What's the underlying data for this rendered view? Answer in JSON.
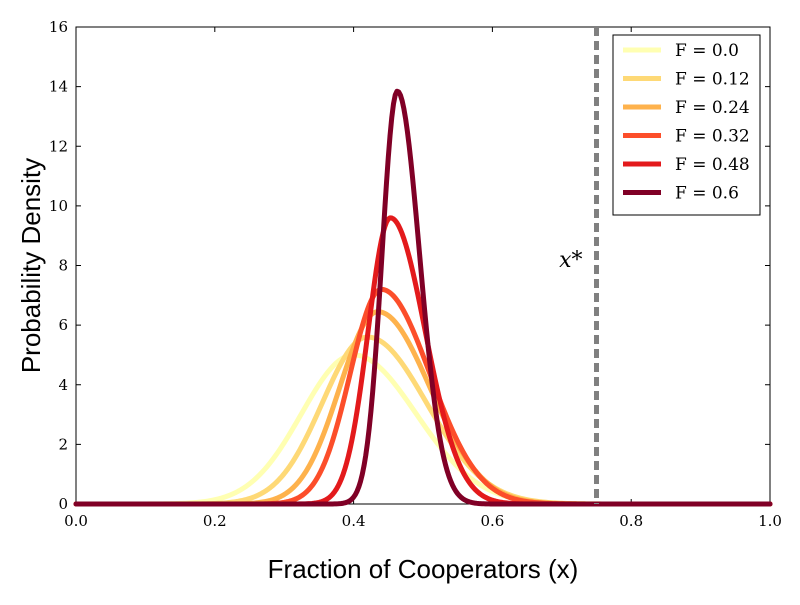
{
  "chart_data": {
    "type": "line",
    "xlabel": "Fraction of Cooperators (x)",
    "ylabel": "Probability Density",
    "xlim": [
      0.0,
      1.0
    ],
    "ylim": [
      0,
      16
    ],
    "xticks": [
      "0.0",
      "0.2",
      "0.4",
      "0.6",
      "0.8",
      "1.0"
    ],
    "yticks": [
      "0",
      "2",
      "4",
      "6",
      "8",
      "10",
      "12",
      "14",
      "16"
    ],
    "grid": false,
    "legend_position": "top-right",
    "series": [
      {
        "name": "F = 0.0",
        "color": "#ffffb2",
        "peak_x": 0.4,
        "peak_y": 5.0,
        "sigma_left": 0.075,
        "sigma_right": 0.09
      },
      {
        "name": "F = 0.12",
        "color": "#fed976",
        "peak_x": 0.42,
        "peak_y": 5.6,
        "sigma_left": 0.065,
        "sigma_right": 0.085
      },
      {
        "name": "F = 0.24",
        "color": "#feb24c",
        "peak_x": 0.435,
        "peak_y": 6.45,
        "sigma_left": 0.055,
        "sigma_right": 0.075
      },
      {
        "name": "F = 0.32",
        "color": "#fc4e2a",
        "peak_x": 0.44,
        "peak_y": 7.2,
        "sigma_left": 0.045,
        "sigma_right": 0.07
      },
      {
        "name": "F = 0.48",
        "color": "#e31a1c",
        "peak_x": 0.453,
        "peak_y": 9.6,
        "sigma_left": 0.032,
        "sigma_right": 0.05
      },
      {
        "name": "F = 0.6",
        "color": "#800026",
        "peak_x": 0.463,
        "peak_y": 13.85,
        "sigma_left": 0.022,
        "sigma_right": 0.032
      }
    ],
    "annotations": [
      {
        "type": "vline",
        "x": 0.75,
        "label": "x*",
        "color": "#808080",
        "style": "dashed"
      }
    ]
  }
}
